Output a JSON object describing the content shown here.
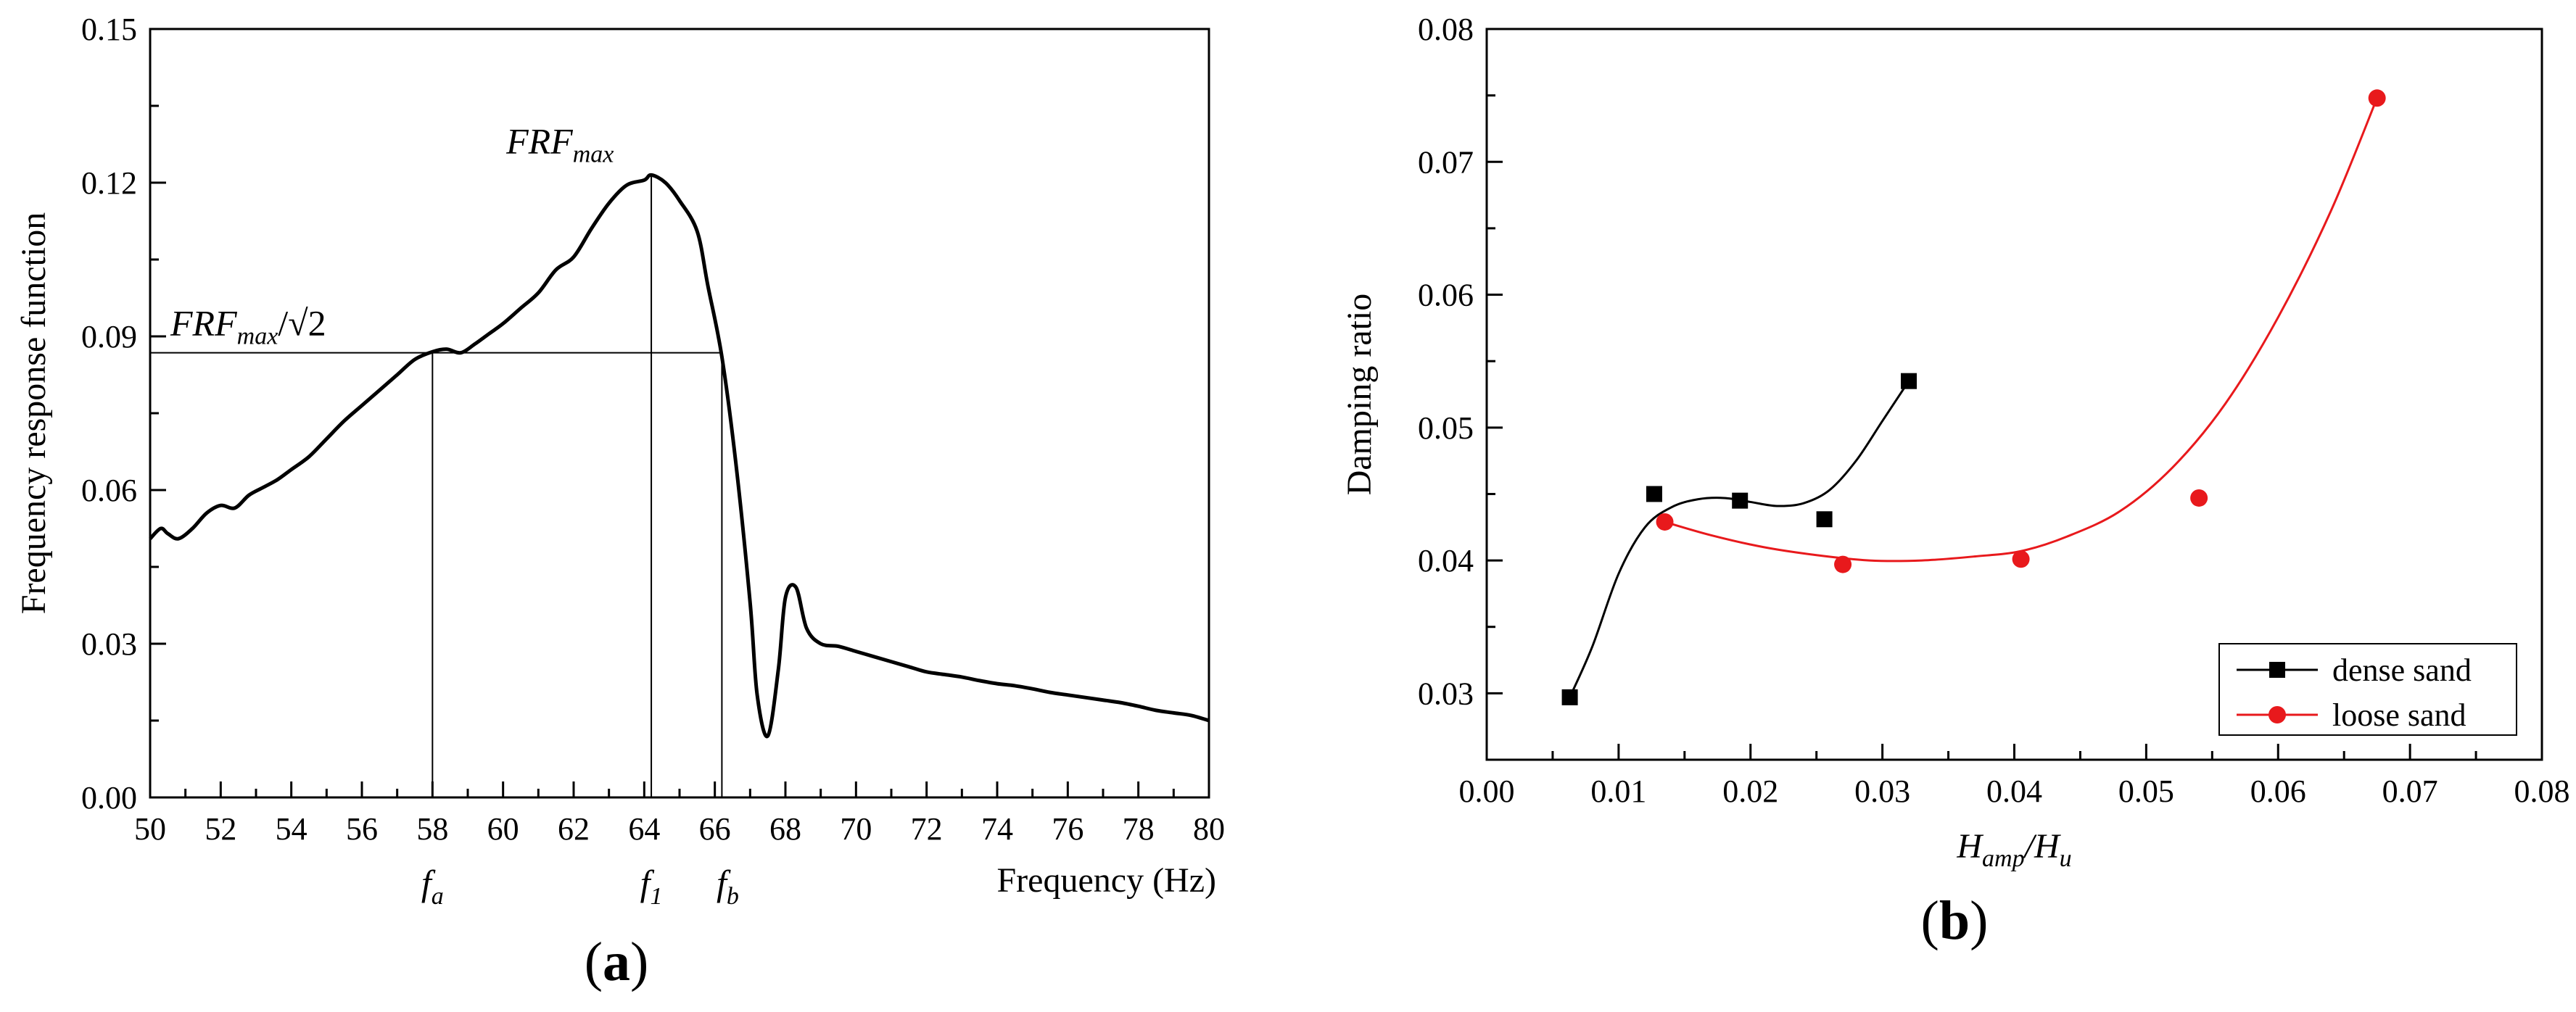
{
  "chart_data": [
    {
      "type": "line",
      "panel_label": "(a)",
      "xlabel": "Frequency (Hz)",
      "ylabel": "Frequency response function",
      "xlim": [
        50,
        80
      ],
      "ylim": [
        0,
        0.15
      ],
      "x_ticks": [
        "50",
        "52",
        "54",
        "56",
        "58",
        "60",
        "62",
        "64",
        "66",
        "68",
        "70",
        "72",
        "74",
        "76",
        "78",
        "80"
      ],
      "y_ticks": [
        "0.00",
        "0.03",
        "0.06",
        "0.09",
        "0.12",
        "0.15"
      ],
      "grid": false,
      "series": [
        {
          "x": [
            50,
            50.3,
            50.5,
            50.8,
            51.2,
            51.6,
            52,
            52.4,
            52.8,
            53.2,
            53.6,
            54,
            54.5,
            55,
            55.5,
            56,
            56.5,
            57,
            57.5,
            58,
            58.4,
            58.8,
            59.2,
            59.6,
            60,
            60.5,
            61,
            61.5,
            62,
            62.5,
            63,
            63.5,
            64,
            64.2,
            64.6,
            65,
            65.5,
            65.8,
            66.2,
            66.6,
            67,
            67.2,
            67.5,
            67.8,
            68.0,
            68.3,
            68.6,
            69,
            69.5,
            70,
            70.5,
            71,
            71.5,
            72,
            72.5,
            73,
            73.5,
            74,
            74.5,
            75,
            75.5,
            76,
            76.5,
            77,
            77.5,
            78,
            78.5,
            79,
            79.5,
            80
          ],
          "y": [
            0.0505,
            0.0525,
            0.0515,
            0.0505,
            0.0525,
            0.0555,
            0.057,
            0.0565,
            0.059,
            0.0605,
            0.062,
            0.064,
            0.0665,
            0.07,
            0.0735,
            0.0765,
            0.0795,
            0.0825,
            0.0855,
            0.087,
            0.0875,
            0.0868,
            0.0885,
            0.0905,
            0.0925,
            0.0955,
            0.0985,
            0.103,
            0.1055,
            0.111,
            0.116,
            0.1195,
            0.1205,
            0.1215,
            0.12,
            0.1165,
            0.1105,
            0.1,
            0.086,
            0.065,
            0.038,
            0.02,
            0.012,
            0.025,
            0.039,
            0.041,
            0.033,
            0.03,
            0.0295,
            0.0285,
            0.0275,
            0.0265,
            0.0255,
            0.0245,
            0.024,
            0.0235,
            0.0228,
            0.0222,
            0.0218,
            0.0212,
            0.0205,
            0.02,
            0.0195,
            0.019,
            0.0185,
            0.0178,
            0.017,
            0.0165,
            0.016,
            0.015
          ]
        }
      ],
      "reference_lines": {
        "y_level": 0.0868,
        "x_marks": [
          58.0,
          64.2,
          66.2
        ],
        "peak_y": 0.1215
      },
      "annotations": {
        "peak_label": "FRF",
        "peak_label_sub": "max",
        "half_power_label": "FRF",
        "half_power_sub": "max",
        "half_power_div": "/√2",
        "fa": "f",
        "fa_sub": "a",
        "f1": "f",
        "f1_sub": "1",
        "fb": "f",
        "fb_sub": "b"
      }
    },
    {
      "type": "scatter",
      "panel_label": "(b)",
      "xlabel_main": "H",
      "xlabel_sub1": "amp",
      "xlabel_div": "/H",
      "xlabel_sub2": "u",
      "ylabel": "Damping ratio",
      "xlim": [
        0,
        0.08
      ],
      "ylim": [
        0.025,
        0.08
      ],
      "x_ticks": [
        "0.00",
        "0.01",
        "0.02",
        "0.03",
        "0.04",
        "0.05",
        "0.06",
        "0.07",
        "0.08"
      ],
      "y_ticks": [
        "0.03",
        "0.04",
        "0.05",
        "0.06",
        "0.07",
        "0.08"
      ],
      "grid": false,
      "legend_position": "bottom-right",
      "series": [
        {
          "name": "dense sand",
          "color": "#000000",
          "marker": "square",
          "points": [
            [
              0.0063,
              0.0297
            ],
            [
              0.0127,
              0.045
            ],
            [
              0.0192,
              0.0445
            ],
            [
              0.0256,
              0.0431
            ],
            [
              0.032,
              0.0535
            ]
          ],
          "curve": [
            [
              0.0063,
              0.0297
            ],
            [
              0.008,
              0.0335
            ],
            [
              0.01,
              0.039
            ],
            [
              0.012,
              0.0425
            ],
            [
              0.014,
              0.044
            ],
            [
              0.016,
              0.0446
            ],
            [
              0.018,
              0.0447
            ],
            [
              0.02,
              0.0444
            ],
            [
              0.022,
              0.0441
            ],
            [
              0.024,
              0.0443
            ],
            [
              0.026,
              0.0453
            ],
            [
              0.028,
              0.0475
            ],
            [
              0.03,
              0.0505
            ],
            [
              0.032,
              0.0535
            ]
          ]
        },
        {
          "name": "loose sand",
          "color": "#e8191c",
          "marker": "circle",
          "points": [
            [
              0.0135,
              0.0429
            ],
            [
              0.027,
              0.0397
            ],
            [
              0.0405,
              0.0401
            ],
            [
              0.054,
              0.0447
            ],
            [
              0.0675,
              0.0748
            ]
          ],
          "curve": [
            [
              0.0135,
              0.0429
            ],
            [
              0.017,
              0.0419
            ],
            [
              0.021,
              0.041
            ],
            [
              0.025,
              0.0404
            ],
            [
              0.029,
              0.04
            ],
            [
              0.033,
              0.04
            ],
            [
              0.037,
              0.0403
            ],
            [
              0.0405,
              0.0407
            ],
            [
              0.044,
              0.0418
            ],
            [
              0.048,
              0.0437
            ],
            [
              0.052,
              0.047
            ],
            [
              0.056,
              0.0518
            ],
            [
              0.06,
              0.0583
            ],
            [
              0.064,
              0.0663
            ],
            [
              0.0675,
              0.0748
            ]
          ]
        }
      ]
    }
  ]
}
